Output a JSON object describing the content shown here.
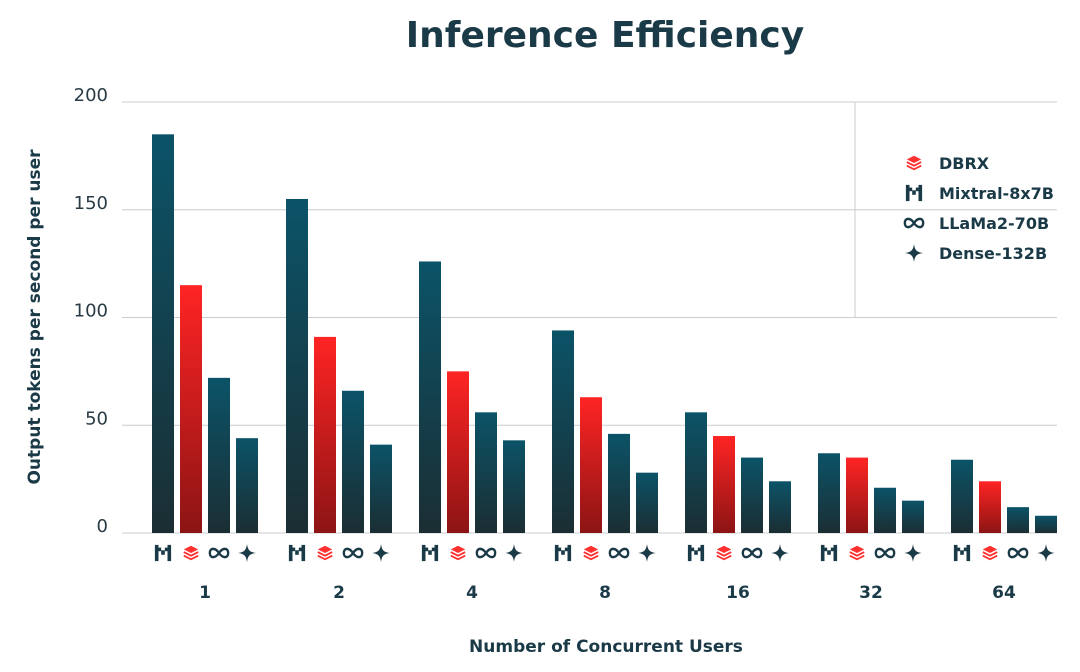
{
  "chart_data": {
    "type": "bar",
    "title": "Inference Efficiency",
    "xlabel": "Number of Concurrent Users",
    "ylabel": "Output tokens per second per user",
    "ylim": [
      0,
      200
    ],
    "yticks": [
      0,
      50,
      100,
      150,
      200
    ],
    "categories": [
      "1",
      "2",
      "4",
      "8",
      "16",
      "32",
      "64"
    ],
    "series": [
      {
        "name": "Mixtral-8x7B",
        "icon": "mixtral-icon",
        "color": "#0b4f63",
        "values": [
          185,
          155,
          126,
          94,
          56,
          37,
          34
        ]
      },
      {
        "name": "DBRX",
        "icon": "dbrx-icon",
        "color": "#ff2020",
        "values": [
          115,
          91,
          75,
          63,
          45,
          35,
          24
        ]
      },
      {
        "name": "LLaMa2-70B",
        "icon": "meta-icon",
        "color": "#0b4f63",
        "values": [
          72,
          66,
          56,
          46,
          35,
          21,
          12
        ]
      },
      {
        "name": "Dense-132B",
        "icon": "sparkle-icon",
        "color": "#0b4f63",
        "values": [
          44,
          41,
          43,
          28,
          24,
          15,
          8
        ]
      }
    ],
    "legend": {
      "placement": "top-right",
      "entries": [
        {
          "label": "DBRX",
          "icon": "dbrx-icon"
        },
        {
          "label": "Mixtral-8x7B",
          "icon": "mixtral-icon"
        },
        {
          "label": "LLaMa2-70B",
          "icon": "meta-icon"
        },
        {
          "label": "Dense-132B",
          "icon": "sparkle-icon"
        }
      ]
    },
    "grid": true
  }
}
